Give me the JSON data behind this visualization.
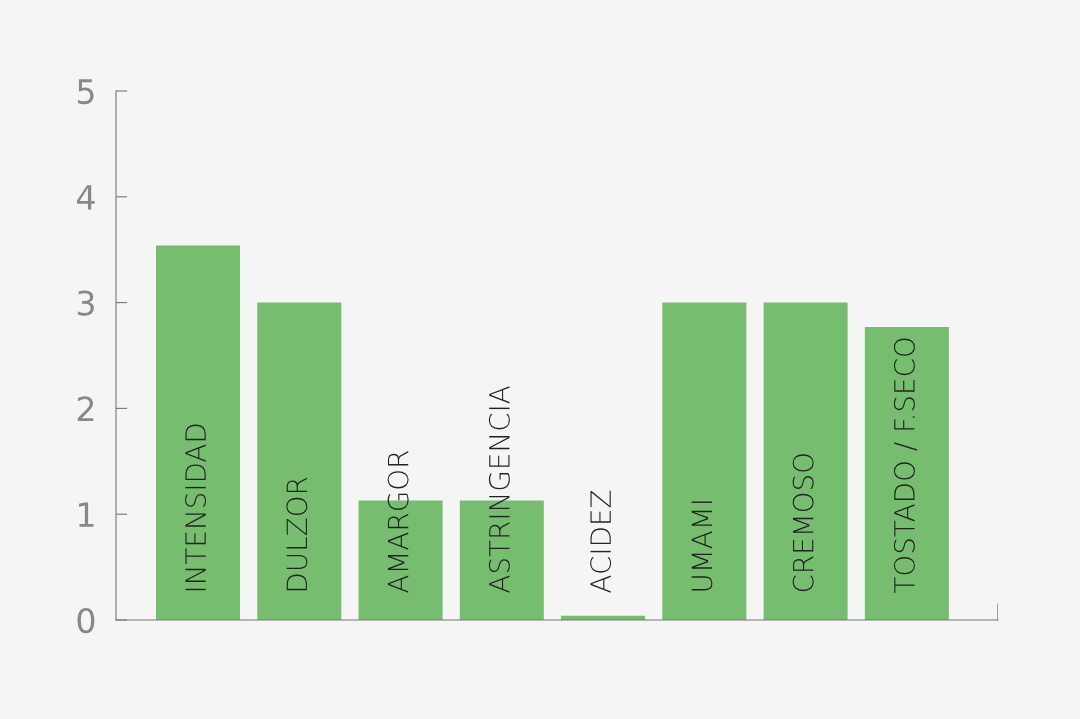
{
  "chart_data": {
    "type": "bar",
    "categories": [
      "INTENSIDAD",
      "DULZOR",
      "AMARGOR",
      "ASTRINGENCIA",
      "ACIDEZ",
      "UMAMI",
      "CREMOSO",
      "TOSTADO / F.SECO"
    ],
    "values": [
      3.54,
      3.0,
      1.13,
      1.13,
      0.04,
      3.0,
      3.0,
      2.77
    ],
    "color": "#77bd6f",
    "ylim": [
      0,
      5
    ],
    "yticks": [
      0,
      1,
      2,
      3,
      4,
      5
    ],
    "grid": false,
    "legend": false
  }
}
